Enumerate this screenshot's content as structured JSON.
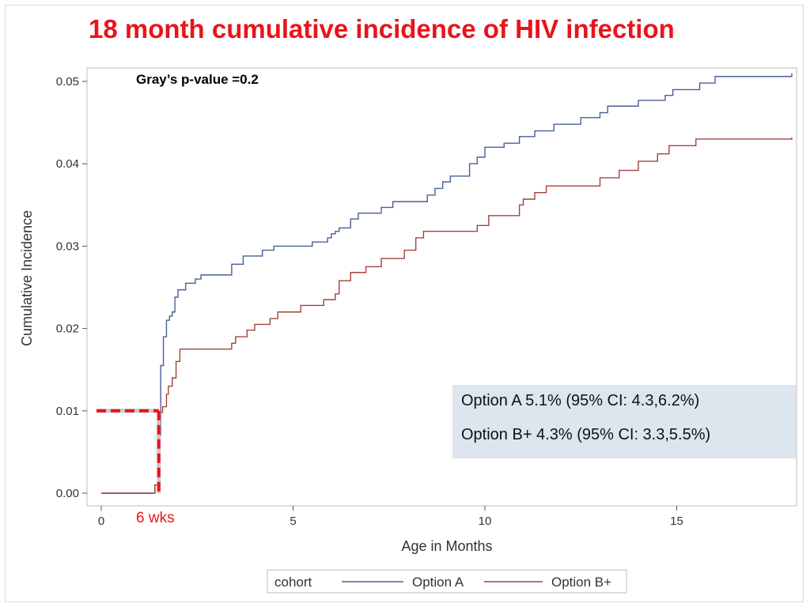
{
  "title": "18 month cumulative incidence of HIV infection",
  "pvalue_label": "Gray’s p-value =0.2",
  "annotation_6wks": "6 wks",
  "ci_box": {
    "line_a": "Option A 5.1% (95% CI: 4.3,6.2%)",
    "line_b": "Option B+ 4.3% (95% CI: 3.3,5.5%)",
    "background": "#dde5ef"
  },
  "legend": {
    "title": "cohort",
    "items": [
      "Option A",
      "Option B+"
    ]
  },
  "colors": {
    "option_a": "#4a5f98",
    "option_b": "#a3433b",
    "title": "#e8141c",
    "marker": "#e8141c"
  },
  "chart_data": {
    "type": "line",
    "step": true,
    "title": "18 month cumulative incidence of HIV infection",
    "xlabel": "Age in Months",
    "ylabel": "Cumulative Incidence",
    "xlim": [
      0,
      18
    ],
    "ylim": [
      0,
      0.05
    ],
    "xticks": [
      0,
      5,
      10,
      15
    ],
    "yticks": [
      "0.00",
      "0.01",
      "0.02",
      "0.03",
      "0.04",
      "0.05"
    ],
    "reference_marker": {
      "x": 1.5,
      "y": 0.01,
      "label": "6 wks"
    },
    "series": [
      {
        "name": "Option A",
        "x": [
          0,
          1.4,
          1.5,
          1.55,
          1.62,
          1.7,
          1.78,
          1.85,
          1.92,
          2.0,
          2.2,
          2.45,
          2.6,
          2.75,
          3.4,
          3.7,
          4.2,
          4.5,
          5.5,
          5.9,
          6.0,
          6.1,
          6.2,
          6.5,
          6.7,
          7.3,
          7.6,
          7.9,
          8.5,
          8.7,
          8.9,
          9.1,
          9.6,
          9.8,
          10.0,
          10.5,
          10.9,
          11.3,
          11.8,
          12.0,
          12.5,
          13.0,
          13.2,
          14.0,
          14.7,
          14.9,
          15.6,
          16.0,
          18.0
        ],
        "y": [
          0,
          0.001,
          0.007,
          0.0155,
          0.019,
          0.021,
          0.0215,
          0.022,
          0.0238,
          0.0247,
          0.0255,
          0.026,
          0.0265,
          0.0265,
          0.0278,
          0.0288,
          0.0295,
          0.03,
          0.0305,
          0.031,
          0.0315,
          0.0318,
          0.0322,
          0.0333,
          0.034,
          0.0347,
          0.0354,
          0.0354,
          0.0362,
          0.037,
          0.0378,
          0.0385,
          0.04,
          0.0408,
          0.042,
          0.0425,
          0.0433,
          0.044,
          0.0448,
          0.0448,
          0.0456,
          0.0462,
          0.047,
          0.0477,
          0.0483,
          0.049,
          0.0498,
          0.0506,
          0.051
        ]
      },
      {
        "name": "Option B+",
        "x": [
          0,
          1.4,
          1.5,
          1.6,
          1.7,
          1.75,
          1.85,
          1.95,
          2.05,
          2.1,
          3.4,
          3.5,
          3.8,
          4.0,
          4.4,
          4.6,
          5.2,
          5.8,
          6.1,
          6.2,
          6.5,
          6.9,
          7.3,
          7.9,
          8.2,
          8.4,
          8.9,
          9.8,
          10.1,
          10.5,
          10.9,
          11.0,
          11.3,
          11.6,
          12.1,
          13.0,
          13.5,
          14.0,
          14.5,
          14.8,
          15.5,
          18.0
        ],
        "y": [
          0,
          0.001,
          0.0098,
          0.0105,
          0.012,
          0.013,
          0.014,
          0.016,
          0.0175,
          0.0175,
          0.0182,
          0.019,
          0.0198,
          0.0205,
          0.0212,
          0.022,
          0.0228,
          0.0235,
          0.0242,
          0.0258,
          0.0268,
          0.0275,
          0.0285,
          0.0295,
          0.031,
          0.0318,
          0.0318,
          0.0325,
          0.0337,
          0.0337,
          0.035,
          0.0357,
          0.0365,
          0.0373,
          0.0373,
          0.0383,
          0.0392,
          0.0403,
          0.0412,
          0.0422,
          0.043,
          0.0432
        ]
      }
    ]
  }
}
